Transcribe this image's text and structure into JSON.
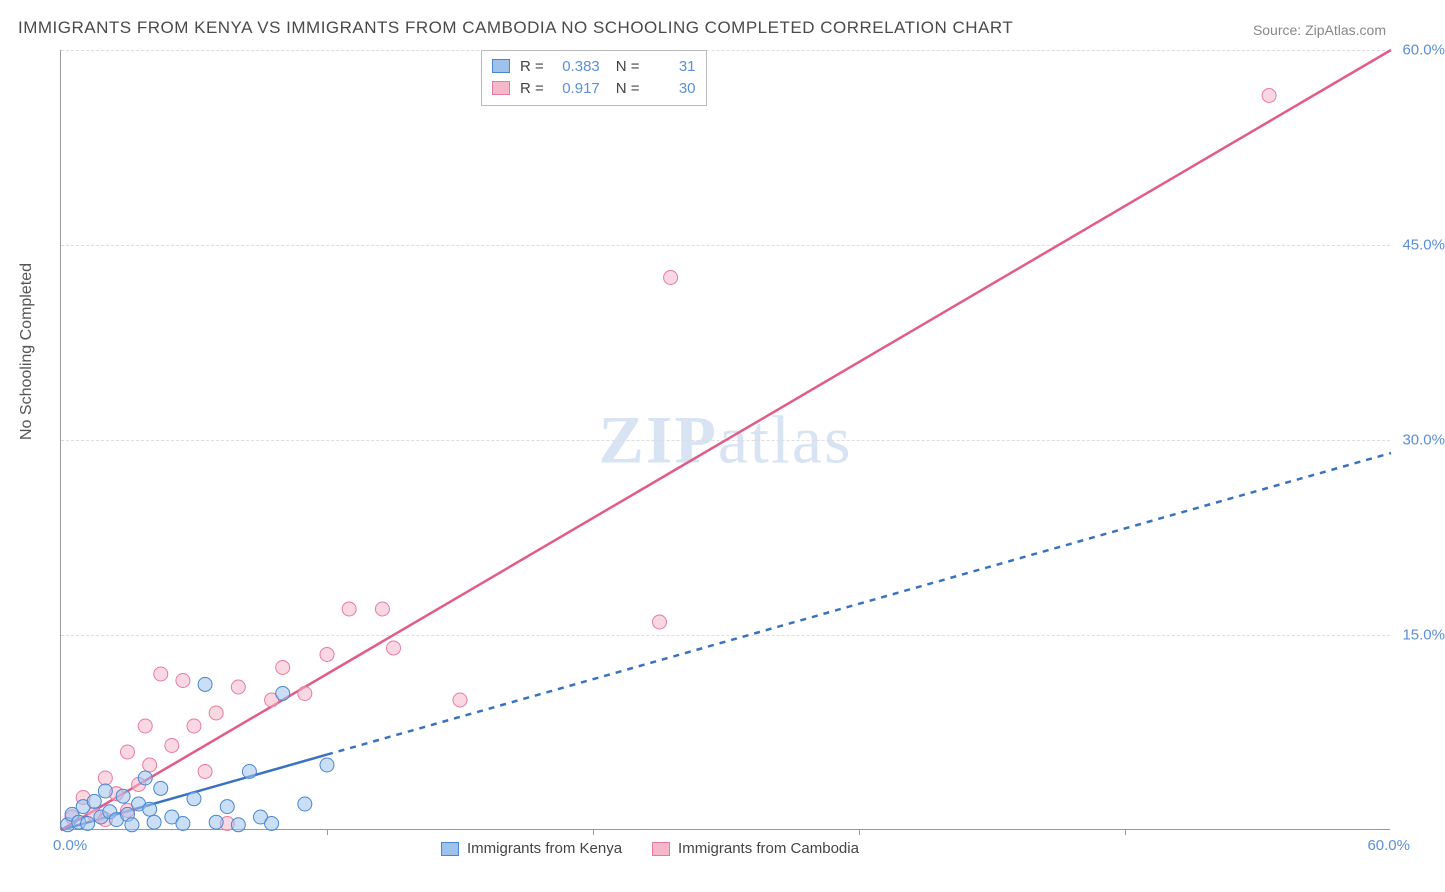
{
  "title": "IMMIGRANTS FROM KENYA VS IMMIGRANTS FROM CAMBODIA NO SCHOOLING COMPLETED CORRELATION CHART",
  "source": "Source: ZipAtlas.com",
  "ylabel": "No Schooling Completed",
  "watermark": "ZIPatlas",
  "chart": {
    "type": "scatter",
    "xlim": [
      0,
      60
    ],
    "ylim": [
      0,
      60
    ],
    "x_tick_positions": [
      0,
      12,
      24,
      36,
      48,
      60
    ],
    "y_tick_positions": [
      15,
      30,
      45,
      60
    ],
    "y_tick_labels": [
      "15.0%",
      "30.0%",
      "45.0%",
      "60.0%"
    ],
    "x_0_label": "0.0%",
    "x_end_label": "60.0%",
    "grid_dashed": true,
    "grid_color": "#dddddd",
    "axis_color": "#999999",
    "tick_label_color": "#5b8fd6",
    "tick_label_fontsize": 15,
    "marker_radius": 7,
    "marker_opacity": 0.55,
    "line_width": 2.5,
    "background_color": "#ffffff"
  },
  "series": [
    {
      "name": "Immigrants from Kenya",
      "color_fill": "#9fc2ec",
      "color_stroke": "#4a86d0",
      "line_color": "#3a72c2",
      "line_dash": "6,6",
      "R": "0.383",
      "N": "31",
      "trend": {
        "x1": 0,
        "y1": 0,
        "x2": 60,
        "y2": 29,
        "solid_until_x": 12
      },
      "points": [
        [
          0.3,
          0.4
        ],
        [
          0.5,
          1.2
        ],
        [
          0.8,
          0.6
        ],
        [
          1.0,
          1.8
        ],
        [
          1.2,
          0.5
        ],
        [
          1.5,
          2.2
        ],
        [
          1.8,
          1.0
        ],
        [
          2.0,
          3.0
        ],
        [
          2.2,
          1.4
        ],
        [
          2.5,
          0.8
        ],
        [
          2.8,
          2.6
        ],
        [
          3.0,
          1.2
        ],
        [
          3.2,
          0.4
        ],
        [
          3.5,
          2.0
        ],
        [
          3.8,
          4.0
        ],
        [
          4.0,
          1.6
        ],
        [
          4.2,
          0.6
        ],
        [
          4.5,
          3.2
        ],
        [
          5.0,
          1.0
        ],
        [
          5.5,
          0.5
        ],
        [
          6.0,
          2.4
        ],
        [
          6.5,
          11.2
        ],
        [
          7.0,
          0.6
        ],
        [
          7.5,
          1.8
        ],
        [
          8.0,
          0.4
        ],
        [
          8.5,
          4.5
        ],
        [
          9.0,
          1.0
        ],
        [
          9.5,
          0.5
        ],
        [
          10.0,
          10.5
        ],
        [
          11.0,
          2.0
        ],
        [
          12.0,
          5.0
        ]
      ]
    },
    {
      "name": "Immigrants from Cambodia",
      "color_fill": "#f5b8ca",
      "color_stroke": "#e77aa0",
      "line_color": "#e25b8a",
      "line_dash": "",
      "R": "0.917",
      "N": "30",
      "trend": {
        "x1": 0,
        "y1": 0,
        "x2": 60,
        "y2": 60,
        "solid_until_x": 60
      },
      "points": [
        [
          0.5,
          1.0
        ],
        [
          1.0,
          2.5
        ],
        [
          1.5,
          1.2
        ],
        [
          2.0,
          4.0
        ],
        [
          2.5,
          2.8
        ],
        [
          3.0,
          6.0
        ],
        [
          3.5,
          3.5
        ],
        [
          3.8,
          8.0
        ],
        [
          4.0,
          5.0
        ],
        [
          4.5,
          12.0
        ],
        [
          5.0,
          6.5
        ],
        [
          5.5,
          11.5
        ],
        [
          6.0,
          8.0
        ],
        [
          6.5,
          4.5
        ],
        [
          7.0,
          9.0
        ],
        [
          7.5,
          0.5
        ],
        [
          8.0,
          11.0
        ],
        [
          9.5,
          10.0
        ],
        [
          10.0,
          12.5
        ],
        [
          11.0,
          10.5
        ],
        [
          12.0,
          13.5
        ],
        [
          13.0,
          17.0
        ],
        [
          14.5,
          17.0
        ],
        [
          15.0,
          14.0
        ],
        [
          18.0,
          10.0
        ],
        [
          27.0,
          16.0
        ],
        [
          27.5,
          42.5
        ],
        [
          54.5,
          56.5
        ],
        [
          3.0,
          1.5
        ],
        [
          2.0,
          0.8
        ]
      ]
    }
  ],
  "legend": {
    "series1_label": "Immigrants from Kenya",
    "series2_label": "Immigrants from Cambodia",
    "R_label": "R =",
    "N_label": "N ="
  }
}
